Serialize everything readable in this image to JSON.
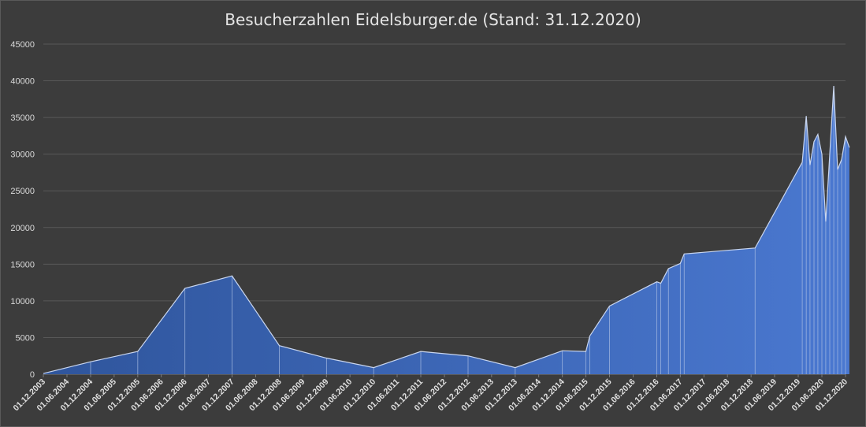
{
  "chart_data": {
    "type": "area",
    "title": "Besucherzahlen Eidelsburger.de (Stand: 31.12.2020)",
    "xlabel": "",
    "ylabel": "",
    "ylim": [
      0,
      45000
    ],
    "y_ticks": [
      0,
      5000,
      10000,
      15000,
      20000,
      25000,
      30000,
      35000,
      40000,
      45000
    ],
    "x_ticks": [
      "01.12.2003",
      "01.06.2004",
      "01.12.2004",
      "01.06.2005",
      "01.12.2005",
      "01.06.2006",
      "01.12.2006",
      "01.06.2007",
      "01.12.2007",
      "01.06.2008",
      "01.12.2008",
      "01.06.2009",
      "01.12.2009",
      "01.06.2010",
      "01.12.2010",
      "01.06.2011",
      "01.12.2011",
      "01.06.2012",
      "01.12.2012",
      "01.06.2013",
      "01.12.2013",
      "01.06.2014",
      "01.12.2014",
      "01.06.2015",
      "01.12.2015",
      "01.06.2016",
      "01.12.2016",
      "01.06.2017",
      "01.12.2017",
      "01.06.2018",
      "01.12.2018",
      "01.06.2019",
      "01.12.2019",
      "01.06.2020",
      "01.12.2020"
    ],
    "grid": true,
    "legend": "none",
    "color": "#4472c4",
    "x_type": "date",
    "points": [
      {
        "x": "2003-12-01",
        "y": 100
      },
      {
        "x": "2004-12-01",
        "y": 1700
      },
      {
        "x": "2005-12-01",
        "y": 3100
      },
      {
        "x": "2006-12-01",
        "y": 11700
      },
      {
        "x": "2007-12-01",
        "y": 13400
      },
      {
        "x": "2008-12-01",
        "y": 3900
      },
      {
        "x": "2009-12-01",
        "y": 2200
      },
      {
        "x": "2010-12-01",
        "y": 900
      },
      {
        "x": "2011-12-01",
        "y": 3100
      },
      {
        "x": "2012-12-01",
        "y": 2500
      },
      {
        "x": "2013-12-01",
        "y": 900
      },
      {
        "x": "2014-12-01",
        "y": 3200
      },
      {
        "x": "2015-06-01",
        "y": 3100
      },
      {
        "x": "2015-07-01",
        "y": 5200
      },
      {
        "x": "2015-12-01",
        "y": 9300
      },
      {
        "x": "2016-12-01",
        "y": 12600
      },
      {
        "x": "2017-01-01",
        "y": 12400
      },
      {
        "x": "2017-03-01",
        "y": 14400
      },
      {
        "x": "2017-06-01",
        "y": 15100
      },
      {
        "x": "2017-07-01",
        "y": 16400
      },
      {
        "x": "2019-01-01",
        "y": 17200
      },
      {
        "x": "2020-01-01",
        "y": 28900
      },
      {
        "x": "2020-02-01",
        "y": 35200
      },
      {
        "x": "2020-03-01",
        "y": 28500
      },
      {
        "x": "2020-04-01",
        "y": 31700
      },
      {
        "x": "2020-05-01",
        "y": 32700
      },
      {
        "x": "2020-06-01",
        "y": 30000
      },
      {
        "x": "2020-07-01",
        "y": 20800
      },
      {
        "x": "2020-08-01",
        "y": 30000
      },
      {
        "x": "2020-09-01",
        "y": 39300
      },
      {
        "x": "2020-10-01",
        "y": 27900
      },
      {
        "x": "2020-11-01",
        "y": 29300
      },
      {
        "x": "2020-12-01",
        "y": 32400
      },
      {
        "x": "2020-12-31",
        "y": 30900
      }
    ]
  }
}
